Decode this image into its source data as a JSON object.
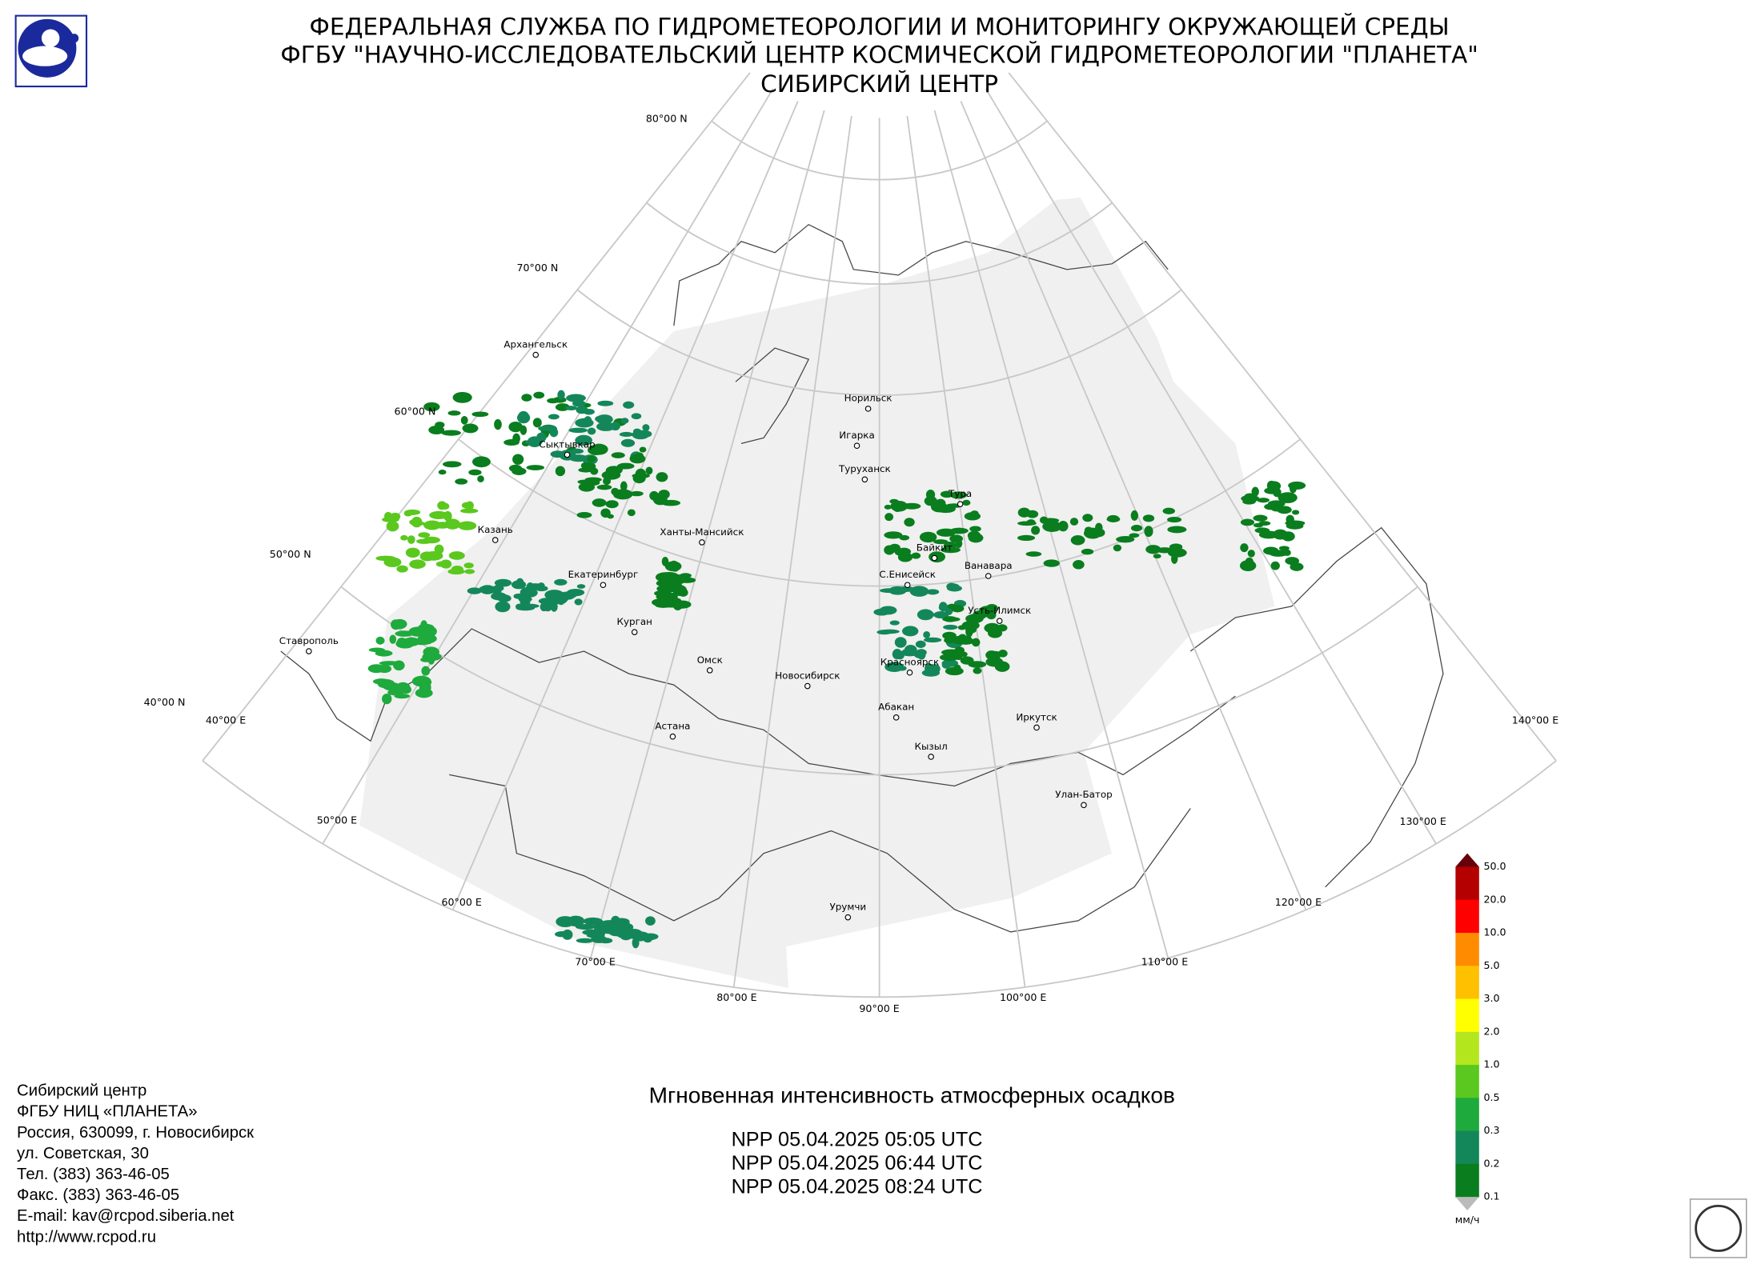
{
  "header": {
    "lines": [
      "ФЕДЕРАЛЬНАЯ СЛУЖБА ПО ГИДРОМЕТЕОРОЛОГИИ И МОНИТОРИНГУ ОКРУЖАЮЩЕЙ СРЕДЫ",
      "ФГБУ \"НАУЧНО-ИССЛЕДОВАТЕЛЬСКИЙ ЦЕНТР КОСМИЧЕСКОЙ ГИДРОМЕТЕОРОЛОГИИ \"ПЛАНЕТА\"",
      "СИБИРСКИЙ ЦЕНТР"
    ]
  },
  "graticule_labels": [
    "80°00 N",
    "70°00 N",
    "60°00 N",
    "50°00 N",
    "40°00 N",
    "40°00 E",
    "50°00 E",
    "60°00 E",
    "70°00 E",
    "80°00 E",
    "90°00 E",
    "100°00 E",
    "110°00 E",
    "120°00 E",
    "130°00 E",
    "140°00 E"
  ],
  "cities": [
    "Архангельск",
    "Сыктывкар",
    "Казань",
    "Ханты-Мансийск",
    "Екатеринбург",
    "Курган",
    "Ставрополь",
    "Омск",
    "Новосибирск",
    "Астана",
    "Норильск",
    "Игарка",
    "Туруханск",
    "Тура",
    "Байкит",
    "Ванавара",
    "С.Енисейск",
    "Усть-Илимск",
    "Красноярск",
    "Абакан",
    "Иркутск",
    "Кызыл",
    "Улан-Батор",
    "Урумчи"
  ],
  "legend": {
    "labels": [
      "50.0",
      "20.0",
      "10.0",
      "5.0",
      "3.0",
      "2.0",
      "1.0",
      "0.5",
      "0.3",
      "0.2",
      "0.1"
    ],
    "unit": "мм/ч"
  },
  "product": {
    "title": "Мгновенная интенсивность атмосферных осадков",
    "passes": [
      "NPP 05.04.2025  05:05 UTC",
      "NPP 05.04.2025  06:44 UTC",
      "NPP 05.04.2025  08:24 UTC"
    ]
  },
  "contact": {
    "lines": [
      "Сибирский центр",
      "ФГБУ НИЦ «ПЛАНЕТА»",
      "Россия, 630099, г. Новосибирск",
      "ул. Советская, 30",
      "Тел. (383) 363-46-05",
      "Факс. (383) 363-46-05",
      "E-mail: kav@rcpod.siberia.net",
      "http://www.rcpod.ru"
    ]
  }
}
